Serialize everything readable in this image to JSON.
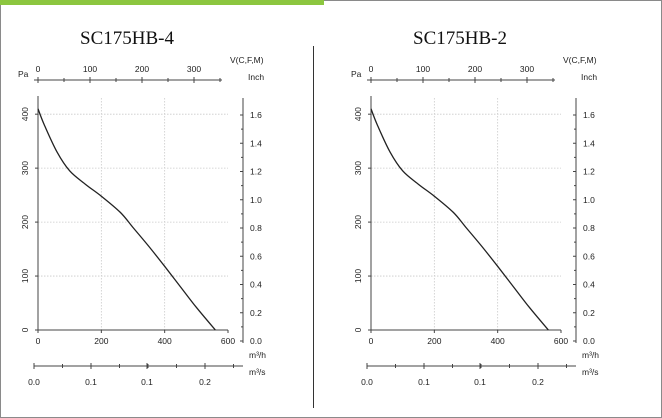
{
  "chart_data": [
    {
      "type": "line",
      "title": "SC175HB-4",
      "x": [
        0,
        20,
        60,
        100,
        150,
        200,
        260,
        300,
        350,
        400,
        450,
        500,
        560
      ],
      "y": [
        410,
        380,
        330,
        295,
        270,
        248,
        218,
        190,
        155,
        118,
        80,
        42,
        0
      ],
      "xlim": [
        0,
        600
      ],
      "ylim": [
        0,
        430
      ],
      "x_ticks": [
        "0",
        "200",
        "400",
        "600"
      ],
      "y_ticks": [
        "0",
        "100",
        "200",
        "300",
        "400"
      ],
      "top_ticks": [
        "0",
        "100",
        "200",
        "300"
      ],
      "right_ticks": [
        "0.0",
        "0.2",
        "0.4",
        "0.6",
        "0.8",
        "1.0",
        "1.2",
        "1.4",
        "1.6"
      ],
      "bottom2_ticks": [
        "0.0",
        "0.1",
        "0.1",
        "0.2"
      ],
      "labels": {
        "pa": "Pa",
        "vcfm": "V(C,F,M)",
        "inch": "Inch",
        "m3h": "m³/h",
        "m3s": "m³/s"
      },
      "grid": true
    },
    {
      "type": "line",
      "title": "SC175HB-2",
      "x": [
        0,
        20,
        60,
        100,
        150,
        200,
        260,
        300,
        350,
        400,
        450,
        500,
        560
      ],
      "y": [
        410,
        380,
        330,
        295,
        270,
        248,
        218,
        190,
        155,
        118,
        80,
        42,
        0
      ],
      "xlim": [
        0,
        600
      ],
      "ylim": [
        0,
        430
      ],
      "x_ticks": [
        "0",
        "200",
        "400",
        "600"
      ],
      "y_ticks": [
        "0",
        "100",
        "200",
        "300",
        "400"
      ],
      "top_ticks": [
        "0",
        "100",
        "200",
        "300"
      ],
      "right_ticks": [
        "0.0",
        "0.2",
        "0.4",
        "0.6",
        "0.8",
        "1.0",
        "1.2",
        "1.4",
        "1.6"
      ],
      "bottom2_ticks": [
        "0.0",
        "0.1",
        "0.1",
        "0.2"
      ],
      "labels": {
        "pa": "Pa",
        "vcfm": "V(C,F,M)",
        "inch": "Inch",
        "m3h": "m³/h",
        "m3s": "m³/s"
      },
      "grid": true
    }
  ],
  "colors": {
    "tab": "#8cc63f",
    "curve": "#222222",
    "grid": "#c9c9c9"
  }
}
